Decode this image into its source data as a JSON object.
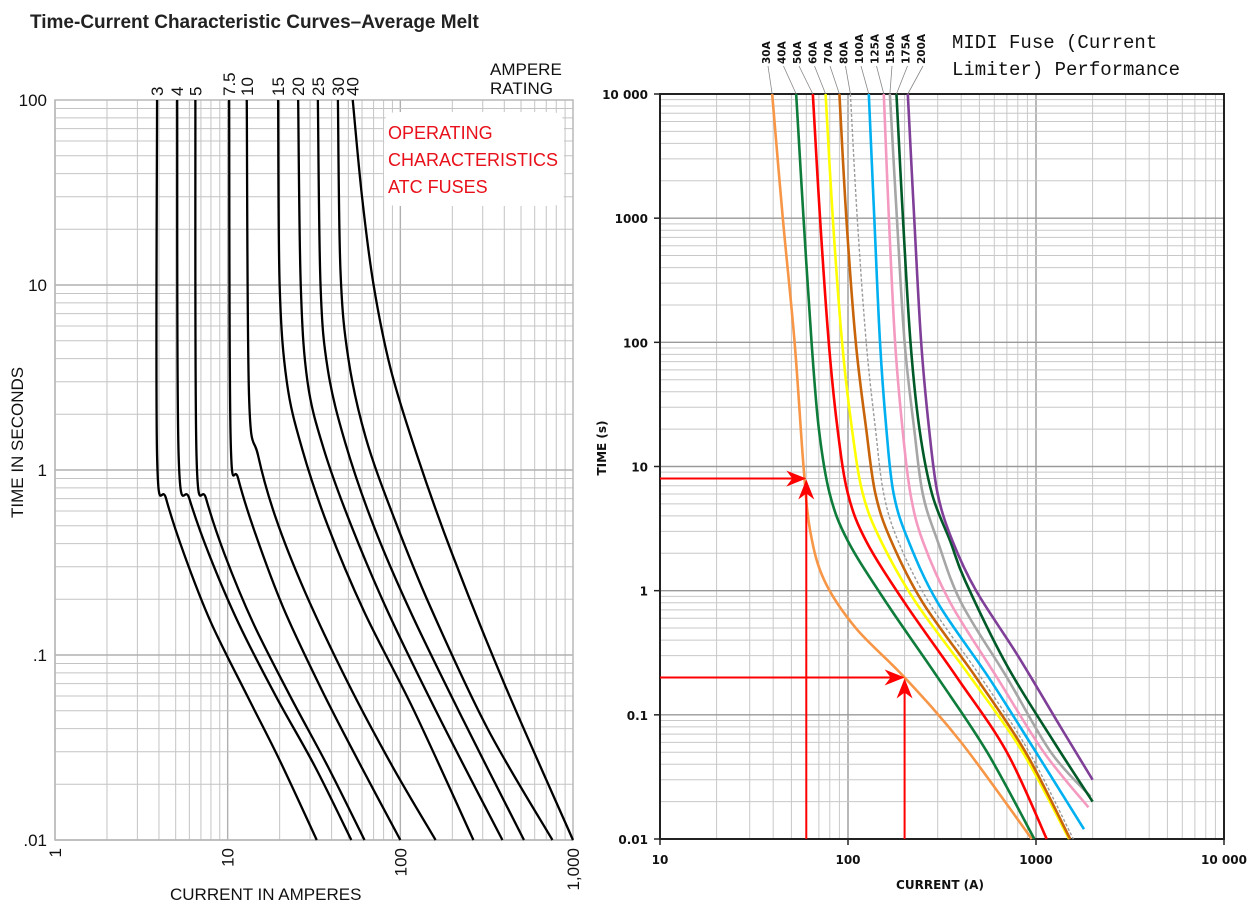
{
  "chart_data": [
    {
      "type": "line",
      "title": "Time-Current Characteristic Curves–Average Melt",
      "annotation": [
        "OPERATING",
        "CHARACTERISTICS",
        "ATC FUSES"
      ],
      "legend_title": [
        "AMPERE",
        "RATING"
      ],
      "xlabel": "CURRENT IN AMPERES",
      "ylabel": "TIME IN SECONDS",
      "xscale": "log",
      "yscale": "log",
      "xlim": [
        1,
        1000
      ],
      "ylim": [
        0.01,
        100
      ],
      "xticks": [
        "1",
        "10",
        "100",
        "1,000"
      ],
      "yticks": [
        "100",
        "10",
        "1",
        ".1",
        ".01"
      ],
      "grid": true,
      "series": [
        {
          "name": "3",
          "color": "#000000",
          "points": [
            [
              3.9,
              100
            ],
            [
              3.9,
              1.2
            ],
            [
              4.4,
              0.7
            ],
            [
              5.6,
              0.35
            ],
            [
              8,
              0.15
            ],
            [
              13,
              0.06
            ],
            [
              20,
              0.027
            ],
            [
              32.8,
              0.01
            ]
          ]
        },
        {
          "name": "4",
          "color": "#000000",
          "points": [
            [
              5.1,
              100
            ],
            [
              5.2,
              1.2
            ],
            [
              6.0,
              0.7
            ],
            [
              7.8,
              0.35
            ],
            [
              11.5,
              0.15
            ],
            [
              19,
              0.06
            ],
            [
              32,
              0.025
            ],
            [
              52,
              0.01
            ]
          ]
        },
        {
          "name": "5",
          "color": "#000000",
          "points": [
            [
              6.5,
              100
            ],
            [
              6.6,
              1.2
            ],
            [
              7.5,
              0.7
            ],
            [
              9.6,
              0.35
            ],
            [
              14,
              0.15
            ],
            [
              23,
              0.06
            ],
            [
              38,
              0.025
            ],
            [
              62,
              0.01
            ]
          ]
        },
        {
          "name": "7.5",
          "color": "#000000",
          "points": [
            [
              10.2,
              100
            ],
            [
              10.4,
              1.5
            ],
            [
              11.5,
              0.9
            ],
            [
              14.5,
              0.45
            ],
            [
              21,
              0.18
            ],
            [
              35,
              0.065
            ],
            [
              58,
              0.026
            ],
            [
              100,
              0.01
            ]
          ]
        },
        {
          "name": "10",
          "color": "#000000",
          "points": [
            [
              12.9,
              100
            ],
            [
              13.3,
              2.5
            ],
            [
              15,
              1.2
            ],
            [
              19,
              0.55
            ],
            [
              28,
              0.22
            ],
            [
              50,
              0.07
            ],
            [
              90,
              0.025
            ],
            [
              160,
              0.01
            ]
          ]
        },
        {
          "name": "15",
          "color": "#000000",
          "points": [
            [
              19.6,
              100
            ],
            [
              20,
              10
            ],
            [
              22,
              3
            ],
            [
              27,
              1.3
            ],
            [
              38,
              0.5
            ],
            [
              62,
              0.17
            ],
            [
              120,
              0.05
            ],
            [
              265,
              0.01
            ]
          ]
        },
        {
          "name": "20",
          "color": "#000000",
          "points": [
            [
              25.6,
              100
            ],
            [
              26.5,
              10
            ],
            [
              29,
              3
            ],
            [
              36,
              1.3
            ],
            [
              52,
              0.5
            ],
            [
              85,
              0.17
            ],
            [
              170,
              0.045
            ],
            [
              390,
              0.01
            ]
          ]
        },
        {
          "name": "25",
          "color": "#000000",
          "points": [
            [
              33.3,
              100
            ],
            [
              34.5,
              10
            ],
            [
              38,
              3.5
            ],
            [
              48,
              1.4
            ],
            [
              70,
              0.5
            ],
            [
              115,
              0.17
            ],
            [
              230,
              0.045
            ],
            [
              520,
              0.01
            ]
          ]
        },
        {
          "name": "30",
          "color": "#000000",
          "points": [
            [
              43.5,
              100
            ],
            [
              45,
              12
            ],
            [
              50,
              4
            ],
            [
              63,
              1.5
            ],
            [
              92,
              0.55
            ],
            [
              150,
              0.18
            ],
            [
              320,
              0.04
            ],
            [
              760,
              0.01
            ]
          ]
        },
        {
          "name": "40",
          "color": "#000000",
          "points": [
            [
              53,
              100
            ],
            [
              60,
              30
            ],
            [
              70,
              10
            ],
            [
              88,
              3.5
            ],
            [
              125,
              1.2
            ],
            [
              200,
              0.35
            ],
            [
              400,
              0.07
            ],
            [
              1000,
              0.01
            ]
          ]
        }
      ]
    },
    {
      "type": "line",
      "title": "MIDI Fuse (Current Limiter) Performance",
      "xlabel": "CURRENT (A)",
      "ylabel": "TIME (s)",
      "xscale": "log",
      "yscale": "log",
      "xlim": [
        10,
        10000
      ],
      "ylim": [
        0.01,
        10000
      ],
      "xticks": [
        "10",
        "100",
        "1000",
        "10 000"
      ],
      "yticks": [
        "10 000",
        "1000",
        "100",
        "10",
        "1",
        "0.1",
        "0.01"
      ],
      "grid": true,
      "series": [
        {
          "name": "30A",
          "color": "#f79646",
          "points": [
            [
              39.5,
              10000
            ],
            [
              45,
              1000
            ],
            [
              52,
              100
            ],
            [
              58,
              10
            ],
            [
              63,
              3
            ],
            [
              75,
              1.2
            ],
            [
              110,
              0.5
            ],
            [
              200,
              0.2
            ],
            [
              400,
              0.06
            ],
            [
              950,
              0.01
            ]
          ]
        },
        {
          "name": "40A",
          "color": "#0e7c3a",
          "points": [
            [
              53,
              10000
            ],
            [
              58,
              1000
            ],
            [
              64,
              100
            ],
            [
              70,
              20
            ],
            [
              80,
              6
            ],
            [
              100,
              2.5
            ],
            [
              160,
              0.8
            ],
            [
              300,
              0.2
            ],
            [
              550,
              0.05
            ],
            [
              980,
              0.01
            ]
          ]
        },
        {
          "name": "50A",
          "color": "#ff0000",
          "points": [
            [
              65,
              10000
            ],
            [
              71,
              1000
            ],
            [
              79,
              100
            ],
            [
              88,
              20
            ],
            [
              100,
              6
            ],
            [
              125,
              2.5
            ],
            [
              200,
              0.8
            ],
            [
              380,
              0.2
            ],
            [
              700,
              0.05
            ],
            [
              1140,
              0.01
            ]
          ]
        },
        {
          "name": "60A",
          "color": "#ffff00",
          "points": [
            [
              76,
              10000
            ],
            [
              83,
              1000
            ],
            [
              93,
              100
            ],
            [
              105,
              20
            ],
            [
              120,
              6
            ],
            [
              150,
              2.5
            ],
            [
              230,
              0.8
            ],
            [
              450,
              0.2
            ],
            [
              850,
              0.05
            ],
            [
              1500,
              0.01
            ]
          ]
        },
        {
          "name": "70A",
          "color": "#c8640a",
          "points": [
            [
              90,
              10000
            ],
            [
              98,
              1000
            ],
            [
              110,
              100
            ],
            [
              125,
              20
            ],
            [
              140,
              6
            ],
            [
              170,
              2.5
            ],
            [
              250,
              0.8
            ],
            [
              480,
              0.2
            ],
            [
              880,
              0.05
            ],
            [
              1520,
              0.01
            ]
          ]
        },
        {
          "name": "80A",
          "color": "#9a9a9a",
          "dashed": true,
          "points": [
            [
              103,
              10000
            ],
            [
              112,
              1000
            ],
            [
              125,
              100
            ],
            [
              140,
              20
            ],
            [
              155,
              6
            ],
            [
              185,
              2.5
            ],
            [
              270,
              0.8
            ],
            [
              510,
              0.2
            ],
            [
              920,
              0.05
            ],
            [
              1580,
              0.01
            ]
          ]
        },
        {
          "name": "100A",
          "color": "#00b0f0",
          "points": [
            [
              129,
              10000
            ],
            [
              138,
              1000
            ],
            [
              148,
              100
            ],
            [
              160,
              20
            ],
            [
              175,
              6
            ],
            [
              210,
              2.5
            ],
            [
              300,
              0.8
            ],
            [
              560,
              0.2
            ],
            [
              1000,
              0.05
            ],
            [
              1800,
              0.012
            ]
          ]
        },
        {
          "name": "125A",
          "color": "#f49ac1",
          "points": [
            [
              155,
              10000
            ],
            [
              165,
              1000
            ],
            [
              178,
              100
            ],
            [
              195,
              20
            ],
            [
              215,
              6
            ],
            [
              250,
              2.5
            ],
            [
              350,
              0.8
            ],
            [
              620,
              0.2
            ],
            [
              1100,
              0.05
            ],
            [
              1900,
              0.018
            ]
          ]
        },
        {
          "name": "150A",
          "color": "#a6a6a6",
          "points": [
            [
              167,
              10000
            ],
            [
              182,
              1000
            ],
            [
              200,
              100
            ],
            [
              225,
              20
            ],
            [
              250,
              6
            ],
            [
              300,
              2.5
            ],
            [
              400,
              0.8
            ],
            [
              700,
              0.2
            ],
            [
              1200,
              0.05
            ],
            [
              1950,
              0.022
            ]
          ]
        },
        {
          "name": "175A",
          "color": "#005a28",
          "points": [
            [
              181,
              10000
            ],
            [
              196,
              1000
            ],
            [
              215,
              100
            ],
            [
              240,
              20
            ],
            [
              280,
              6
            ],
            [
              350,
              2.5
            ],
            [
              420,
              1.2
            ],
            [
              700,
              0.25
            ],
            [
              1250,
              0.06
            ],
            [
              2000,
              0.02
            ]
          ]
        },
        {
          "name": "200A",
          "color": "#7f3f98",
          "points": [
            [
              208,
              10000
            ],
            [
              225,
              1000
            ],
            [
              245,
              100
            ],
            [
              270,
              20
            ],
            [
              300,
              6
            ],
            [
              360,
              2.5
            ],
            [
              480,
              1.0
            ],
            [
              800,
              0.3
            ],
            [
              1350,
              0.08
            ],
            [
              2000,
              0.03
            ]
          ]
        }
      ],
      "annotations": [
        {
          "type": "arrow-lookup",
          "color": "#ff0000",
          "current": 60,
          "time": 8
        },
        {
          "type": "arrow-lookup",
          "color": "#ff0000",
          "current": 200,
          "time": 0.2
        }
      ]
    }
  ]
}
